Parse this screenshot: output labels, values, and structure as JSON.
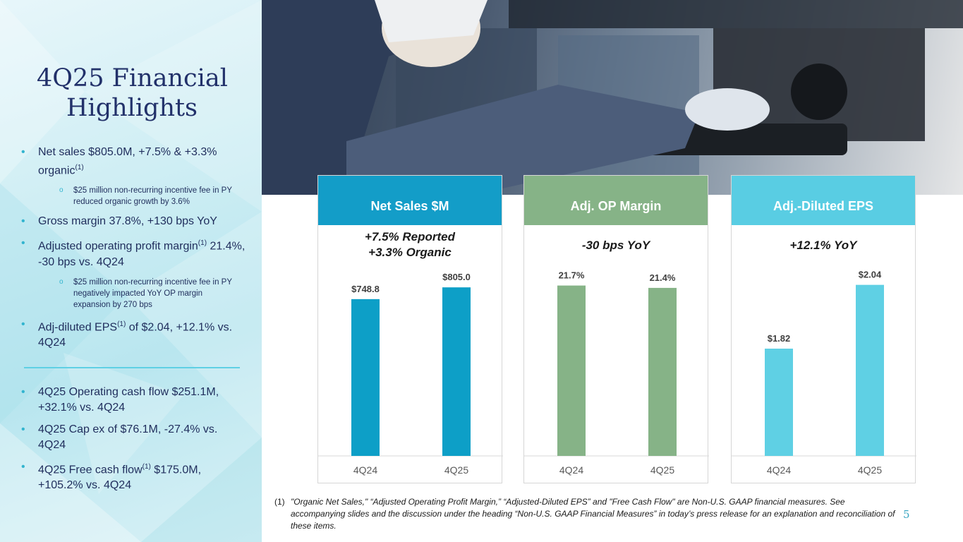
{
  "title": {
    "line1": "4Q25 Financial",
    "line2": "Highlights"
  },
  "bullets_top": [
    {
      "type": "main",
      "text": "Net sales $805.0M, +7.5% & +3.3% organic",
      "sup": "(1)",
      "tail": ""
    },
    {
      "type": "sub",
      "text": "$25 million non-recurring incentive fee in PY reduced organic growth by 3.6%"
    },
    {
      "type": "main",
      "text": "Gross margin 37.8%, +130 bps YoY",
      "sup": "",
      "tail": ""
    },
    {
      "type": "main",
      "text": "Adjusted operating profit margin",
      "sup": "(1)",
      "tail": " 21.4%, -30 bps vs. 4Q24"
    },
    {
      "type": "sub",
      "text": "$25 million non-recurring incentive fee in PY negatively impacted YoY OP margin expansion by 270 bps"
    },
    {
      "type": "main",
      "text": "Adj-diluted EPS",
      "sup": "(1)",
      "tail": " of $2.04, +12.1% vs. 4Q24"
    }
  ],
  "bullets_bottom": [
    {
      "type": "main",
      "text": "4Q25 Operating cash flow $251.1M, +32.1% vs. 4Q24",
      "sup": "",
      "tail": ""
    },
    {
      "type": "main",
      "text": "4Q25 Cap ex of $76.1M, -27.4% vs. 4Q24",
      "sup": "",
      "tail": ""
    },
    {
      "type": "main",
      "text": "4Q25 Free cash flow",
      "sup": "(1)",
      "tail": " $175.0M, +105.2% vs. 4Q24"
    }
  ],
  "chart_data": [
    {
      "type": "bar",
      "title": "Net Sales $M",
      "subtitle": [
        "+7.5% Reported",
        "+3.3% Organic"
      ],
      "categories": [
        "4Q24",
        "4Q25"
      ],
      "values": [
        748.8,
        805.0
      ],
      "labels": [
        "$748.8",
        "$805.0"
      ],
      "ylim": [
        0,
        900
      ],
      "color": "#0d9fc7",
      "header_color": "#139dc8"
    },
    {
      "type": "bar",
      "title": "Adj. OP Margin",
      "subtitle": [
        "-30 bps YoY"
      ],
      "categories": [
        "4Q24",
        "4Q25"
      ],
      "values": [
        21.7,
        21.4
      ],
      "labels": [
        "21.7%",
        "21.4%"
      ],
      "ylim": [
        0,
        24
      ],
      "color": "#86b387",
      "header_color": "#86b387"
    },
    {
      "type": "bar",
      "title": "Adj.-Diluted EPS",
      "subtitle": [
        "+12.1% YoY"
      ],
      "categories": [
        "4Q24",
        "4Q25"
      ],
      "values": [
        1.82,
        2.04
      ],
      "labels": [
        "$1.82",
        "$2.04"
      ],
      "ylim": [
        1.45,
        2.1
      ],
      "color": "#5fd0e4",
      "header_color": "#59cde3"
    }
  ],
  "footnote": {
    "num": "(1)",
    "text": "\"Organic Net Sales,\" “Adjusted Operating Profit Margin,” “Adjusted-Diluted EPS” and \"Free Cash Flow\" are Non-U.S. GAAP financial measures. See accompanying slides and the discussion under the heading “Non-U.S. GAAP Financial Measures” in today’s press release for an explanation and reconciliation of these items."
  },
  "page_number": "5"
}
